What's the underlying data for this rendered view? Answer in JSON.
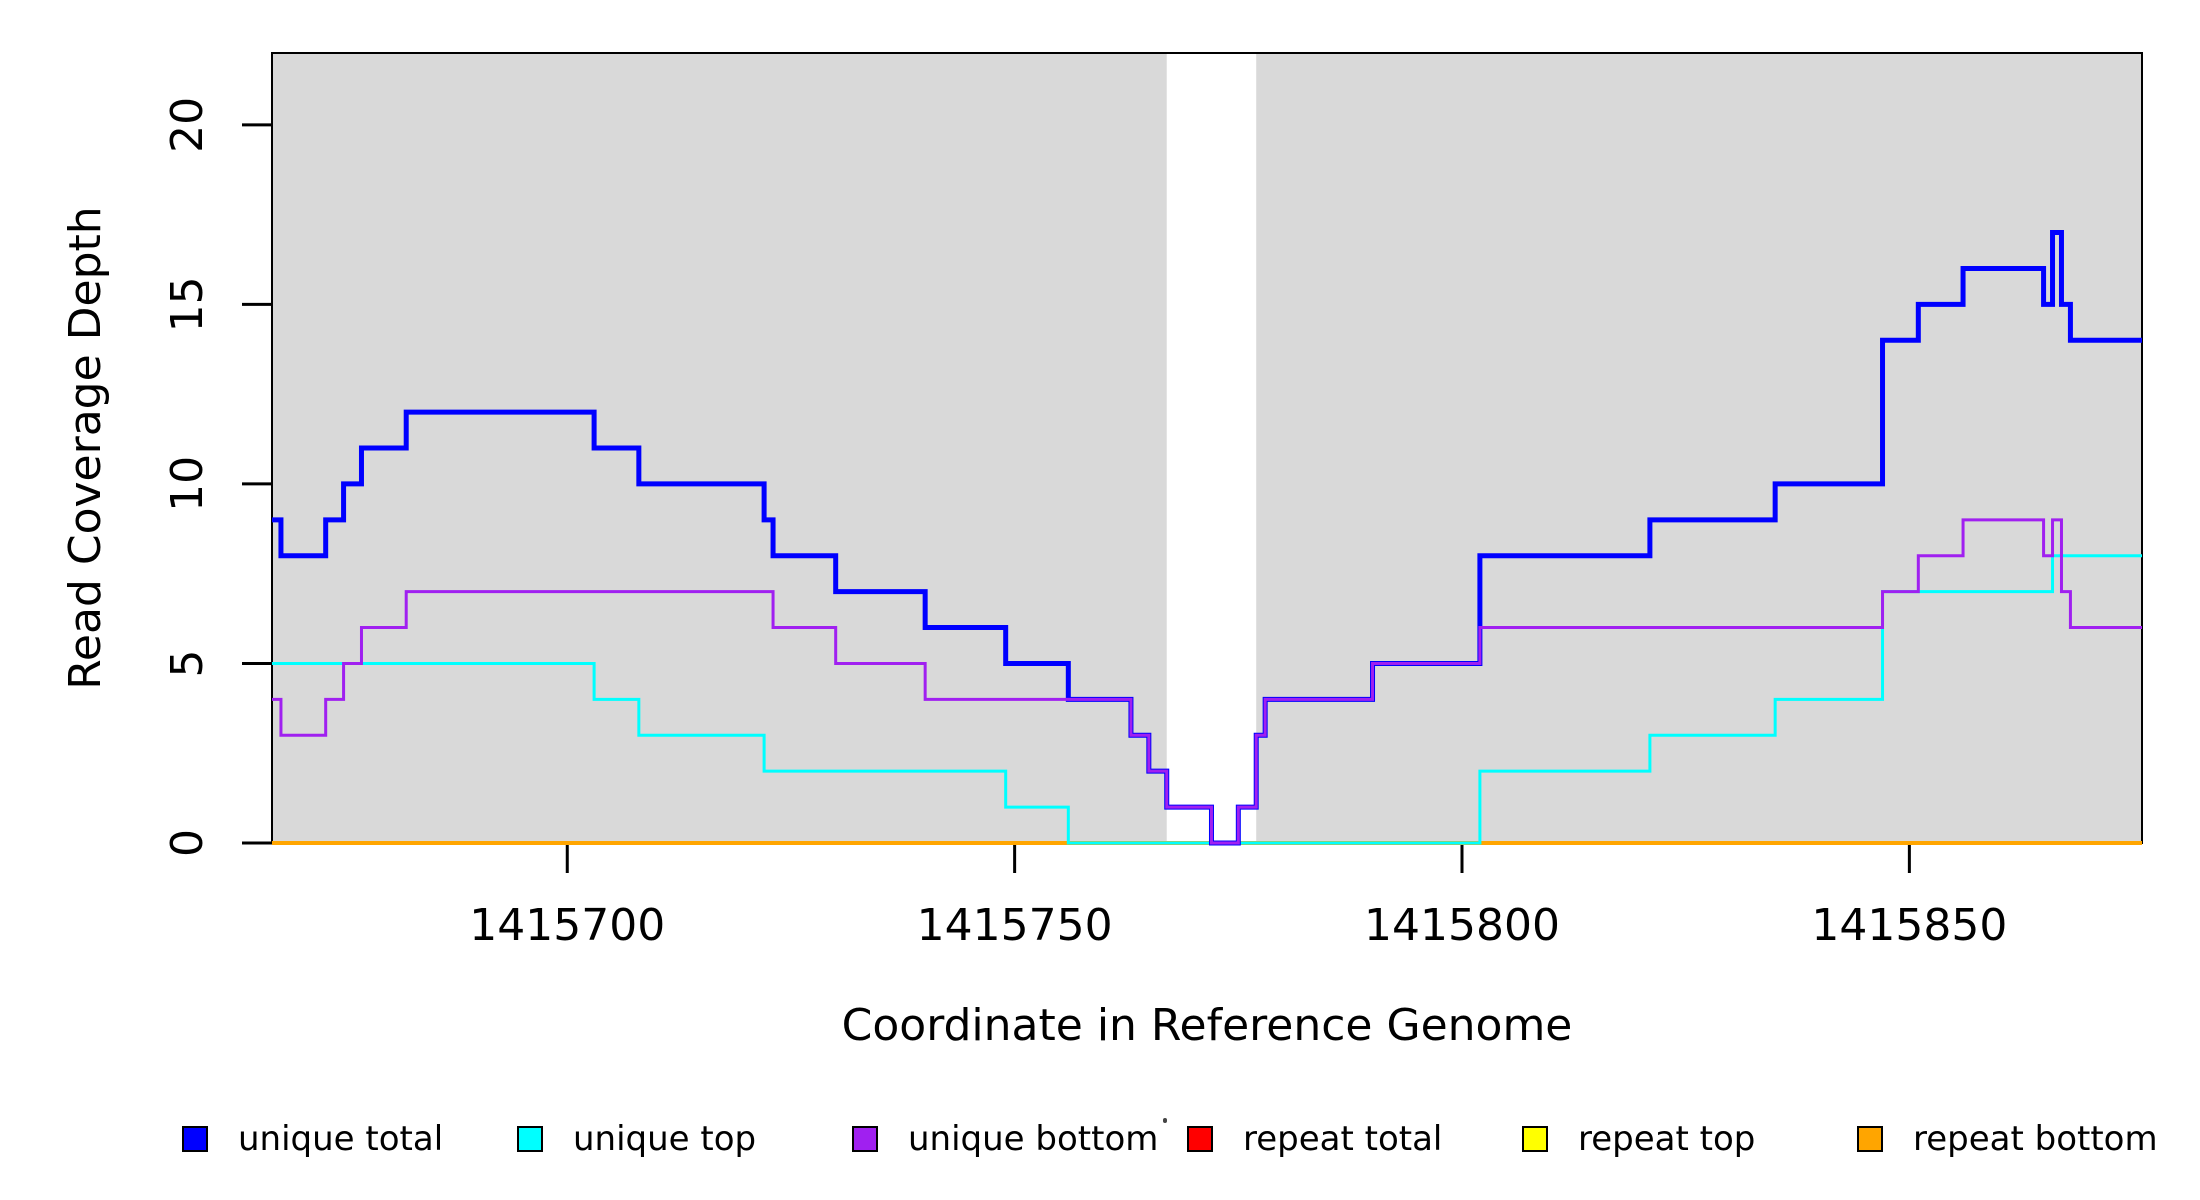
{
  "figure": {
    "xlabel": "Coordinate in Reference Genome",
    "ylabel": "Read Coverage Depth"
  },
  "chart_data": {
    "type": "line",
    "subtype": "step-coverage-plot",
    "title": "",
    "xlabel": "Coordinate in Reference Genome",
    "ylabel": "Read Coverage Depth",
    "grid": false,
    "plot_background": "#FFFFFF",
    "box_color": "#000000",
    "x_axis": {
      "range": [
        1415667,
        1415876
      ],
      "ticks": [
        1415700,
        1415750,
        1415800,
        1415850
      ]
    },
    "y_axis": {
      "range": [
        0,
        22
      ],
      "ticks": [
        0,
        5,
        10,
        15,
        20
      ]
    },
    "shaded_regions": [
      {
        "x0": 1415667,
        "x1": 1415767,
        "color": "#D9D9D9"
      },
      {
        "x0": 1415777,
        "x1": 1415876,
        "color": "#D9D9D9"
      }
    ],
    "series": [
      {
        "name": "repeat total",
        "color": "#FF0000",
        "line_width": 3,
        "steps": [
          [
            1415667,
            0
          ],
          [
            1415876,
            0
          ]
        ]
      },
      {
        "name": "repeat top",
        "color": "#FFFF00",
        "line_width": 3,
        "steps": [
          [
            1415667,
            0
          ],
          [
            1415876,
            0
          ]
        ]
      },
      {
        "name": "repeat bottom",
        "color": "#FFA500",
        "line_width": 4,
        "steps": [
          [
            1415667,
            0
          ],
          [
            1415876,
            0
          ]
        ]
      },
      {
        "name": "unique top",
        "color": "#00FFFF",
        "line_width": 3,
        "steps": [
          [
            1415667,
            5
          ],
          [
            1415703,
            4
          ],
          [
            1415708,
            3
          ],
          [
            1415722,
            2
          ],
          [
            1415749,
            1
          ],
          [
            1415756,
            0
          ],
          [
            1415802,
            2
          ],
          [
            1415821,
            3
          ],
          [
            1415835,
            4
          ],
          [
            1415847,
            7
          ],
          [
            1415866,
            8
          ],
          [
            1415876,
            8
          ]
        ]
      },
      {
        "name": "unique total",
        "color": "#0000FF",
        "line_width": 5,
        "steps": [
          [
            1415667,
            9
          ],
          [
            1415668,
            8
          ],
          [
            1415673,
            9
          ],
          [
            1415675,
            10
          ],
          [
            1415677,
            11
          ],
          [
            1415682,
            12
          ],
          [
            1415703,
            11
          ],
          [
            1415708,
            10
          ],
          [
            1415722,
            9
          ],
          [
            1415723,
            8
          ],
          [
            1415730,
            7
          ],
          [
            1415740,
            6
          ],
          [
            1415749,
            5
          ],
          [
            1415756,
            4
          ],
          [
            1415763,
            3
          ],
          [
            1415765,
            2
          ],
          [
            1415767,
            1
          ],
          [
            1415772,
            0
          ],
          [
            1415775,
            1
          ],
          [
            1415777,
            3
          ],
          [
            1415778,
            4
          ],
          [
            1415790,
            5
          ],
          [
            1415802,
            8
          ],
          [
            1415821,
            9
          ],
          [
            1415835,
            10
          ],
          [
            1415847,
            14
          ],
          [
            1415851,
            15
          ],
          [
            1415856,
            16
          ],
          [
            1415865,
            15
          ],
          [
            1415866,
            17
          ],
          [
            1415867,
            15
          ],
          [
            1415868,
            14
          ],
          [
            1415876,
            14
          ]
        ]
      },
      {
        "name": "unique bottom",
        "color": "#A020F0",
        "line_width": 3,
        "steps": [
          [
            1415667,
            4
          ],
          [
            1415668,
            3
          ],
          [
            1415673,
            4
          ],
          [
            1415675,
            5
          ],
          [
            1415677,
            6
          ],
          [
            1415682,
            7
          ],
          [
            1415723,
            6
          ],
          [
            1415730,
            5
          ],
          [
            1415740,
            4
          ],
          [
            1415763,
            3
          ],
          [
            1415765,
            2
          ],
          [
            1415767,
            1
          ],
          [
            1415772,
            0
          ],
          [
            1415775,
            1
          ],
          [
            1415777,
            3
          ],
          [
            1415778,
            4
          ],
          [
            1415790,
            5
          ],
          [
            1415802,
            6
          ],
          [
            1415847,
            7
          ],
          [
            1415851,
            8
          ],
          [
            1415856,
            9
          ],
          [
            1415865,
            8
          ],
          [
            1415866,
            9
          ],
          [
            1415867,
            7
          ],
          [
            1415868,
            6
          ],
          [
            1415876,
            6
          ]
        ]
      }
    ],
    "legend": {
      "position": "bottom",
      "items": [
        {
          "label": "unique total",
          "color": "#0000FF"
        },
        {
          "label": "unique top",
          "color": "#00FFFF"
        },
        {
          "label": "unique bottom",
          "color": "#A020F0"
        },
        {
          "label": "repeat total",
          "color": "#FF0000"
        },
        {
          "label": "repeat top",
          "color": "#FFFF00"
        },
        {
          "label": "repeat bottom",
          "color": "#FFA500"
        }
      ]
    }
  }
}
